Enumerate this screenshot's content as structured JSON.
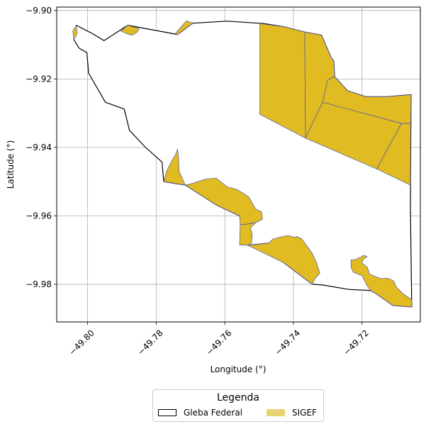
{
  "chart_data": {
    "type": "map",
    "title": "",
    "xlabel": "Longitude (°)",
    "ylabel": "Latitude (°)",
    "xlim": [
      -49.809,
      -49.703
    ],
    "ylim": [
      -9.991,
      -9.899
    ],
    "xticks": [
      -49.8,
      -49.78,
      -49.76,
      -49.74,
      -49.72
    ],
    "xtick_labels": [
      "−49.80",
      "−49.78",
      "−49.76",
      "−49.74",
      "−49.72"
    ],
    "yticks": [
      -9.9,
      -9.92,
      -9.94,
      -9.96,
      -9.98
    ],
    "ytick_labels": [
      "−9.90",
      "−9.92",
      "−9.94",
      "−9.96",
      "−9.98"
    ],
    "grid": true,
    "legend": {
      "title": "Legenda",
      "placement": "bottom-center",
      "entries": [
        {
          "label": "Gleba Federal",
          "color": "#ffffff",
          "edge": "#000000"
        },
        {
          "label": "SIGEF",
          "color": "#e8d272",
          "edge": "#e8d272"
        }
      ]
    },
    "colors": {
      "sigef_fill": "#e0bb22",
      "sigef_edge": "#5555aa",
      "gleba_edge": "#000000"
    },
    "gleba_federal": [
      [
        -49.8033,
        -9.9043
      ],
      [
        -49.7985,
        -9.9068
      ],
      [
        -49.7952,
        -9.9088
      ],
      [
        -49.7883,
        -9.9043
      ],
      [
        -49.7738,
        -9.907
      ],
      [
        -49.7693,
        -9.9037
      ],
      [
        -49.7593,
        -9.9031
      ],
      [
        -49.7487,
        -9.9038
      ],
      [
        -49.743,
        -9.9047
      ],
      [
        -49.7367,
        -9.9063
      ],
      [
        -49.7318,
        -9.9072
      ],
      [
        -49.729,
        -9.9138
      ],
      [
        -49.7282,
        -9.9148
      ],
      [
        -49.728,
        -9.9193
      ],
      [
        -49.7242,
        -9.9235
      ],
      [
        -49.7188,
        -9.9252
      ],
      [
        -49.7128,
        -9.9252
      ],
      [
        -49.7057,
        -9.9246
      ],
      [
        -49.7059,
        -9.958
      ],
      [
        -49.7055,
        -9.9866
      ],
      [
        -49.711,
        -9.9862
      ],
      [
        -49.7158,
        -9.9828
      ],
      [
        -49.7175,
        -9.9818
      ],
      [
        -49.7238,
        -9.9815
      ],
      [
        -49.7315,
        -9.9802
      ],
      [
        -49.7345,
        -9.98
      ],
      [
        -49.7428,
        -9.9737
      ],
      [
        -49.7473,
        -9.968
      ],
      [
        -49.7533,
        -9.9686
      ],
      [
        -49.7557,
        -9.96
      ],
      [
        -49.7625,
        -9.9568
      ],
      [
        -49.7715,
        -9.951
      ],
      [
        -49.7778,
        -9.95
      ],
      [
        -49.7783,
        -9.9443
      ],
      [
        -49.7833,
        -9.9398
      ],
      [
        -49.7878,
        -9.935
      ],
      [
        -49.7893,
        -9.9288
      ],
      [
        -49.7948,
        -9.9268
      ],
      [
        -49.7997,
        -9.9183
      ],
      [
        -49.8002,
        -9.9123
      ],
      [
        -49.8025,
        -9.911
      ],
      [
        -49.804,
        -9.9085
      ],
      [
        -49.8033,
        -9.9043
      ]
    ],
    "sigef_parcels": [
      [
        [
          -49.7498,
          -9.9038
        ],
        [
          -49.743,
          -9.9047
        ],
        [
          -49.7367,
          -9.9063
        ],
        [
          -49.7365,
          -9.9373
        ],
        [
          -49.7498,
          -9.9303
        ]
      ],
      [
        [
          -49.7367,
          -9.9063
        ],
        [
          -49.7318,
          -9.9072
        ],
        [
          -49.729,
          -9.9138
        ],
        [
          -49.7282,
          -9.9148
        ],
        [
          -49.728,
          -9.9193
        ],
        [
          -49.73,
          -9.9203
        ],
        [
          -49.7315,
          -9.9268
        ],
        [
          -49.7365,
          -9.9373
        ]
      ],
      [
        [
          -49.728,
          -9.9193
        ],
        [
          -49.7242,
          -9.9235
        ],
        [
          -49.7188,
          -9.9252
        ],
        [
          -49.7128,
          -9.9252
        ],
        [
          -49.7057,
          -9.9246
        ],
        [
          -49.7058,
          -9.933
        ],
        [
          -49.7085,
          -9.933
        ],
        [
          -49.7315,
          -9.9268
        ],
        [
          -49.73,
          -9.9203
        ]
      ],
      [
        [
          -49.7315,
          -9.9268
        ],
        [
          -49.7085,
          -9.933
        ],
        [
          -49.7157,
          -9.9463
        ],
        [
          -49.7365,
          -9.9373
        ]
      ],
      [
        [
          -49.7085,
          -9.933
        ],
        [
          -49.7058,
          -9.933
        ],
        [
          -49.7059,
          -9.951
        ],
        [
          -49.7157,
          -9.9463
        ]
      ],
      [
        [
          -49.7778,
          -9.95
        ],
        [
          -49.777,
          -9.947
        ],
        [
          -49.7755,
          -9.944
        ],
        [
          -49.7743,
          -9.942
        ],
        [
          -49.7738,
          -9.9405
        ],
        [
          -49.7735,
          -9.9425
        ],
        [
          -49.7733,
          -9.947
        ],
        [
          -49.7715,
          -9.951
        ]
      ],
      [
        [
          -49.7715,
          -9.951
        ],
        [
          -49.7693,
          -9.9505
        ],
        [
          -49.7655,
          -9.9492
        ],
        [
          -49.7625,
          -9.949
        ],
        [
          -49.7593,
          -9.9515
        ],
        [
          -49.7565,
          -9.9523
        ],
        [
          -49.7545,
          -9.9535
        ],
        [
          -49.753,
          -9.9545
        ],
        [
          -49.751,
          -9.958
        ],
        [
          -49.7493,
          -9.9588
        ],
        [
          -49.749,
          -9.961
        ],
        [
          -49.751,
          -9.962
        ],
        [
          -49.7545,
          -9.9626
        ],
        [
          -49.7555,
          -9.9625
        ],
        [
          -49.7557,
          -9.96
        ],
        [
          -49.7625,
          -9.9568
        ]
      ],
      [
        [
          -49.7555,
          -9.9625
        ],
        [
          -49.7545,
          -9.9626
        ],
        [
          -49.751,
          -9.962
        ],
        [
          -49.7525,
          -9.9635
        ],
        [
          -49.752,
          -9.9655
        ],
        [
          -49.7522,
          -9.968
        ],
        [
          -49.7533,
          -9.9686
        ],
        [
          -49.7557,
          -9.9685
        ]
      ],
      [
        [
          -49.7533,
          -9.9686
        ],
        [
          -49.7473,
          -9.968
        ],
        [
          -49.746,
          -9.9668
        ],
        [
          -49.743,
          -9.966
        ],
        [
          -49.7415,
          -9.9658
        ],
        [
          -49.7395,
          -9.9663
        ],
        [
          -49.739,
          -9.966
        ],
        [
          -49.7375,
          -9.9668
        ],
        [
          -49.7345,
          -9.971
        ],
        [
          -49.7332,
          -9.9738
        ],
        [
          -49.7323,
          -9.9768
        ],
        [
          -49.7338,
          -9.9785
        ],
        [
          -49.7345,
          -9.98
        ],
        [
          -49.7428,
          -9.9737
        ]
      ],
      [
        [
          -49.7175,
          -9.9818
        ],
        [
          -49.7158,
          -9.9828
        ],
        [
          -49.711,
          -9.9862
        ],
        [
          -49.7055,
          -9.9866
        ],
        [
          -49.7055,
          -9.9845
        ],
        [
          -49.708,
          -9.9828
        ],
        [
          -49.71,
          -9.9808
        ],
        [
          -49.7108,
          -9.979
        ],
        [
          -49.7125,
          -9.9782
        ],
        [
          -49.7145,
          -9.9783
        ],
        [
          -49.716,
          -9.9778
        ],
        [
          -49.7178,
          -9.977
        ],
        [
          -49.7185,
          -9.975
        ],
        [
          -49.72,
          -9.9738
        ],
        [
          -49.7195,
          -9.9725
        ],
        [
          -49.7185,
          -9.972
        ],
        [
          -49.7193,
          -9.9715
        ],
        [
          -49.722,
          -9.9728
        ],
        [
          -49.7232,
          -9.9728
        ],
        [
          -49.7232,
          -9.975
        ],
        [
          -49.7225,
          -9.9765
        ],
        [
          -49.72,
          -9.9775
        ],
        [
          -49.7185,
          -9.9805
        ]
      ],
      [
        [
          -49.7712,
          -9.903
        ],
        [
          -49.7693,
          -9.9037
        ],
        [
          -49.7738,
          -9.907
        ],
        [
          -49.7745,
          -9.9068
        ]
      ],
      [
        [
          -49.7883,
          -9.9043
        ],
        [
          -49.785,
          -9.9053
        ],
        [
          -49.7855,
          -9.9063
        ],
        [
          -49.787,
          -9.9072
        ],
        [
          -49.7885,
          -9.9068
        ],
        [
          -49.7903,
          -9.906
        ]
      ],
      [
        [
          -49.8033,
          -9.9043
        ],
        [
          -49.8043,
          -9.906
        ],
        [
          -49.804,
          -9.9085
        ],
        [
          -49.803,
          -9.9068
        ]
      ]
    ]
  }
}
